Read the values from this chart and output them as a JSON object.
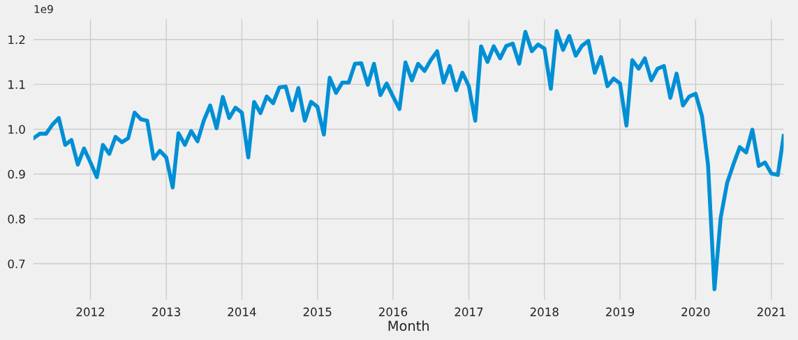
{
  "chart_data": {
    "type": "line",
    "xlabel": "Month",
    "annotations": [
      "1e9"
    ],
    "x": [
      "2011-04",
      "2011-05",
      "2011-06",
      "2011-07",
      "2011-08",
      "2011-09",
      "2011-10",
      "2011-11",
      "2011-12",
      "2012-01",
      "2012-02",
      "2012-03",
      "2012-04",
      "2012-05",
      "2012-06",
      "2012-07",
      "2012-08",
      "2012-09",
      "2012-10",
      "2012-11",
      "2012-12",
      "2013-01",
      "2013-02",
      "2013-03",
      "2013-04",
      "2013-05",
      "2013-06",
      "2013-07",
      "2013-08",
      "2013-09",
      "2013-10",
      "2013-11",
      "2013-12",
      "2014-01",
      "2014-02",
      "2014-03",
      "2014-04",
      "2014-05",
      "2014-06",
      "2014-07",
      "2014-08",
      "2014-09",
      "2014-10",
      "2014-11",
      "2014-12",
      "2015-01",
      "2015-02",
      "2015-03",
      "2015-04",
      "2015-05",
      "2015-06",
      "2015-07",
      "2015-08",
      "2015-09",
      "2015-10",
      "2015-11",
      "2015-12",
      "2016-01",
      "2016-02",
      "2016-03",
      "2016-04",
      "2016-05",
      "2016-06",
      "2016-07",
      "2016-08",
      "2016-09",
      "2016-10",
      "2016-11",
      "2016-12",
      "2017-01",
      "2017-02",
      "2017-03",
      "2017-04",
      "2017-05",
      "2017-06",
      "2017-07",
      "2017-08",
      "2017-09",
      "2017-10",
      "2017-11",
      "2017-12",
      "2018-01",
      "2018-02",
      "2018-03",
      "2018-04",
      "2018-05",
      "2018-06",
      "2018-07",
      "2018-08",
      "2018-09",
      "2018-10",
      "2018-11",
      "2018-12",
      "2019-01",
      "2019-02",
      "2019-03",
      "2019-04",
      "2019-05",
      "2019-06",
      "2019-07",
      "2019-08",
      "2019-09",
      "2019-10",
      "2019-11",
      "2019-12",
      "2020-01",
      "2020-02",
      "2020-03",
      "2020-04",
      "2020-05",
      "2020-06",
      "2020-07",
      "2020-08",
      "2020-09",
      "2020-10",
      "2020-11",
      "2020-12",
      "2021-01",
      "2021-02",
      "2021-03"
    ],
    "series": [
      {
        "color": "#008fd5",
        "values": [
          0.98,
          0.99,
          0.99,
          1.01,
          1.025,
          0.965,
          0.976,
          0.921,
          0.957,
          0.926,
          0.893,
          0.965,
          0.945,
          0.983,
          0.971,
          0.98,
          1.037,
          1.022,
          1.019,
          0.934,
          0.952,
          0.937,
          0.87,
          0.991,
          0.965,
          0.996,
          0.973,
          1.019,
          1.053,
          1.002,
          1.072,
          1.025,
          1.048,
          1.037,
          0.937,
          1.061,
          1.036,
          1.073,
          1.058,
          1.093,
          1.095,
          1.042,
          1.092,
          1.019,
          1.061,
          1.05,
          0.988,
          1.115,
          1.081,
          1.104,
          1.104,
          1.146,
          1.147,
          1.099,
          1.146,
          1.076,
          1.102,
          1.073,
          1.045,
          1.149,
          1.109,
          1.146,
          1.13,
          1.154,
          1.174,
          1.104,
          1.141,
          1.087,
          1.126,
          1.096,
          1.019,
          1.185,
          1.15,
          1.185,
          1.158,
          1.186,
          1.191,
          1.146,
          1.217,
          1.174,
          1.189,
          1.18,
          1.09,
          1.219,
          1.177,
          1.208,
          1.164,
          1.186,
          1.197,
          1.126,
          1.161,
          1.096,
          1.113,
          1.102,
          1.008,
          1.154,
          1.135,
          1.158,
          1.109,
          1.135,
          1.141,
          1.07,
          1.124,
          1.053,
          1.073,
          1.079,
          1.029,
          0.92,
          0.643,
          0.802,
          0.88,
          0.921,
          0.96,
          0.948,
          0.999,
          0.918,
          0.926,
          0.901,
          0.898,
          0.985
        ]
      }
    ],
    "xlim": [
      "2011-04",
      "2021-03"
    ],
    "xticks": [
      {
        "value": "2012-01",
        "label": "2012"
      },
      {
        "value": "2013-01",
        "label": "2013"
      },
      {
        "value": "2014-01",
        "label": "2014"
      },
      {
        "value": "2015-01",
        "label": "2015"
      },
      {
        "value": "2016-01",
        "label": "2016"
      },
      {
        "value": "2017-01",
        "label": "2017"
      },
      {
        "value": "2018-01",
        "label": "2018"
      },
      {
        "value": "2019-01",
        "label": "2019"
      },
      {
        "value": "2020-01",
        "label": "2020"
      },
      {
        "value": "2021-01",
        "label": "2021"
      }
    ],
    "ylim": [
      0.62,
      1.245
    ],
    "yticks": [
      0.7,
      0.8,
      0.9,
      {
        "value": 1.0,
        "label": "1.0"
      },
      1.1,
      1.2
    ],
    "grid": true,
    "line_style": "solid",
    "marker": "none"
  }
}
